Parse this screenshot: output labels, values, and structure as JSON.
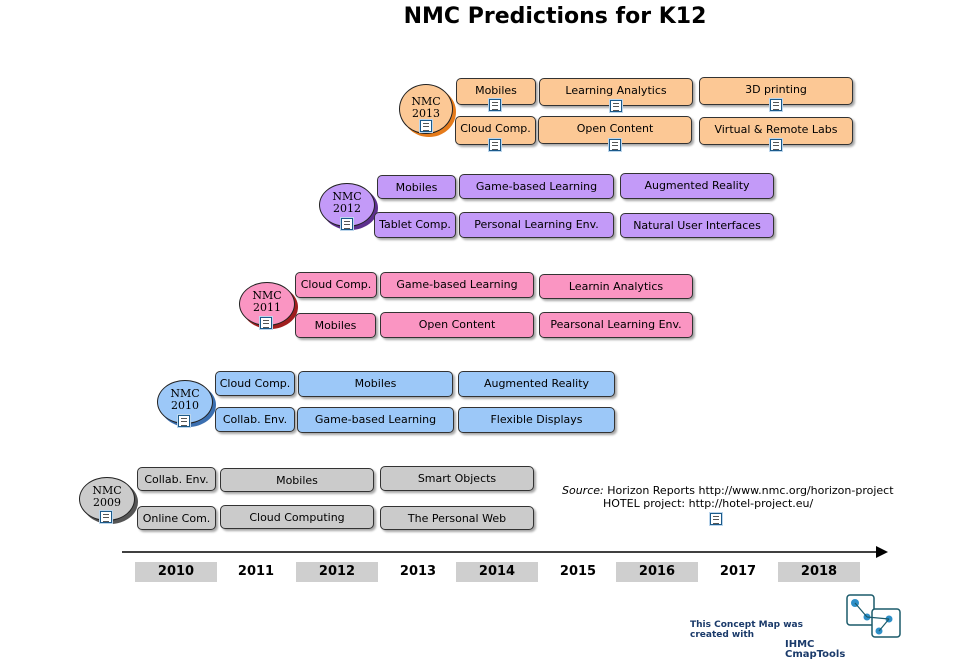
{
  "title": "NMC Predictions for K12",
  "groups": [
    {
      "bubble": [
        "NMC",
        "2013"
      ],
      "color": "#fcc895",
      "items": [
        "Mobiles",
        "Learning Analytics",
        "3D printing",
        "Cloud Comp.",
        "Open Content",
        "Virtual & Remote Labs"
      ]
    },
    {
      "bubble": [
        "NMC",
        "2012"
      ],
      "color": "#c39af8",
      "items": [
        "Mobiles",
        "Game-based Learning",
        "Augmented Reality",
        "Tablet Comp.",
        "Personal Learning Env.",
        "Natural User Interfaces"
      ]
    },
    {
      "bubble": [
        "NMC",
        "2011"
      ],
      "color": "#fa95c2",
      "items": [
        "Cloud Comp.",
        "Game-based Learning",
        "Learnin Analytics",
        "Mobiles",
        "Open Content",
        "Pearsonal Learning Env."
      ]
    },
    {
      "bubble": [
        "NMC",
        "2010"
      ],
      "color": "#9cc8f8",
      "items": [
        "Cloud Comp.",
        "Mobiles",
        "Augmented Reality",
        "Collab. Env.",
        "Game-based Learning",
        "Flexible Displays"
      ]
    },
    {
      "bubble": [
        "NMC",
        "2009"
      ],
      "color": "#cbcbcb",
      "items": [
        "Collab. Env.",
        "Mobiles",
        "Smart Objects",
        "Online Com.",
        "Cloud Computing",
        "The Personal Web"
      ]
    }
  ],
  "timeline": {
    "years": [
      "2010",
      "2011",
      "2012",
      "2013",
      "2014",
      "2015",
      "2016",
      "2017",
      "2018"
    ],
    "arrow_color": "#000000"
  },
  "source": {
    "label": "Source:",
    "line1": "Horizon Reports http://www.nmc.org/horizon-project",
    "line2": "HOTEL project: http://hotel-project.eu/"
  },
  "credit": {
    "line1": "This Concept Map was created with",
    "line2": "IHMC CmapTools"
  },
  "icons": {
    "document": "document-icon",
    "logo": "cmaptools-logo"
  }
}
